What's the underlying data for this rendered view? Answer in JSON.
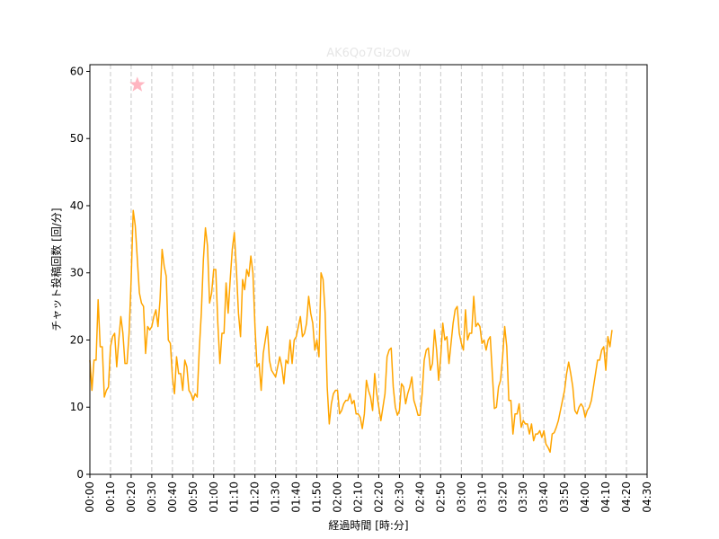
{
  "chart_data": {
    "type": "line",
    "title": "AK6Qo7GlzOw",
    "xlabel": "経過時間 [時:分]",
    "ylabel": "チャット投稿回数 [回/分]",
    "xlim": [
      0,
      270
    ],
    "ylim": [
      0,
      61
    ],
    "xticks": [
      {
        "value": 0,
        "label": "00:00"
      },
      {
        "value": 10,
        "label": "00:10"
      },
      {
        "value": 20,
        "label": "00:20"
      },
      {
        "value": 30,
        "label": "00:30"
      },
      {
        "value": 40,
        "label": "00:40"
      },
      {
        "value": 50,
        "label": "00:50"
      },
      {
        "value": 60,
        "label": "01:00"
      },
      {
        "value": 70,
        "label": "01:10"
      },
      {
        "value": 80,
        "label": "01:20"
      },
      {
        "value": 90,
        "label": "01:30"
      },
      {
        "value": 100,
        "label": "01:40"
      },
      {
        "value": 110,
        "label": "01:50"
      },
      {
        "value": 120,
        "label": "02:00"
      },
      {
        "value": 130,
        "label": "02:10"
      },
      {
        "value": 140,
        "label": "02:20"
      },
      {
        "value": 150,
        "label": "02:30"
      },
      {
        "value": 160,
        "label": "02:40"
      },
      {
        "value": 170,
        "label": "02:50"
      },
      {
        "value": 180,
        "label": "03:00"
      },
      {
        "value": 190,
        "label": "03:10"
      },
      {
        "value": 200,
        "label": "03:20"
      },
      {
        "value": 210,
        "label": "03:30"
      },
      {
        "value": 220,
        "label": "03:40"
      },
      {
        "value": 230,
        "label": "03:50"
      },
      {
        "value": 240,
        "label": "04:00"
      },
      {
        "value": 250,
        "label": "04:10"
      },
      {
        "value": 260,
        "label": "04:20"
      },
      {
        "value": 270,
        "label": "04:30"
      }
    ],
    "yticks": [
      {
        "value": 0,
        "label": "0"
      },
      {
        "value": 10,
        "label": "10"
      },
      {
        "value": 20,
        "label": "20"
      },
      {
        "value": 30,
        "label": "30"
      },
      {
        "value": 40,
        "label": "40"
      },
      {
        "value": 50,
        "label": "50"
      },
      {
        "value": 60,
        "label": "60"
      }
    ],
    "vertical_dashed_grid_x": [
      10,
      20,
      30,
      40,
      50,
      60,
      70,
      80,
      90,
      100,
      110,
      120,
      130,
      140,
      150,
      160,
      170,
      180,
      190,
      200,
      210,
      220,
      230,
      240,
      250,
      260
    ],
    "marker": {
      "shape": "star",
      "x": 23,
      "y": 58,
      "color": "#ffb6c1"
    },
    "series": [
      {
        "color": "#ffa500",
        "points": [
          [
            0,
            17
          ],
          [
            1,
            12.5
          ],
          [
            2,
            17
          ],
          [
            3,
            17
          ],
          [
            4,
            26
          ],
          [
            5,
            19
          ],
          [
            6,
            19
          ],
          [
            7,
            11.5
          ],
          [
            8,
            12.5
          ],
          [
            9,
            13
          ],
          [
            10,
            19
          ],
          [
            11,
            20.5
          ],
          [
            12,
            21
          ],
          [
            13,
            16
          ],
          [
            14,
            20
          ],
          [
            15,
            23.5
          ],
          [
            16,
            21
          ],
          [
            17,
            16.5
          ],
          [
            18,
            16.5
          ],
          [
            19,
            21
          ],
          [
            20,
            29
          ],
          [
            21,
            39.3
          ],
          [
            22,
            37
          ],
          [
            23,
            32
          ],
          [
            24,
            27
          ],
          [
            25,
            25.5
          ],
          [
            26,
            25
          ],
          [
            27,
            18
          ],
          [
            28,
            22
          ],
          [
            29,
            21.5
          ],
          [
            30,
            22
          ],
          [
            31,
            23.5
          ],
          [
            32,
            24.5
          ],
          [
            33,
            22
          ],
          [
            34,
            26
          ],
          [
            35,
            33.5
          ],
          [
            36,
            31
          ],
          [
            37,
            29.5
          ],
          [
            38,
            20
          ],
          [
            39,
            19.5
          ],
          [
            40,
            14.5
          ],
          [
            41,
            12
          ],
          [
            42,
            17.5
          ],
          [
            43,
            15
          ],
          [
            44,
            15
          ],
          [
            45,
            12.5
          ],
          [
            46,
            17
          ],
          [
            47,
            16
          ],
          [
            48,
            12.5
          ],
          [
            49,
            12
          ],
          [
            50,
            11
          ],
          [
            51,
            12
          ],
          [
            52,
            11.5
          ],
          [
            53,
            18.5
          ],
          [
            54,
            24
          ],
          [
            55,
            32
          ],
          [
            56,
            36.7
          ],
          [
            57,
            34
          ],
          [
            58,
            25.5
          ],
          [
            59,
            27
          ],
          [
            60,
            30.5
          ],
          [
            61,
            30.5
          ],
          [
            62,
            22.5
          ],
          [
            63,
            16.5
          ],
          [
            64,
            21
          ],
          [
            65,
            21
          ],
          [
            66,
            28.5
          ],
          [
            67,
            24
          ],
          [
            68,
            29
          ],
          [
            69,
            33.5
          ],
          [
            70,
            36
          ],
          [
            71,
            30.5
          ],
          [
            72,
            24
          ],
          [
            73,
            20.5
          ],
          [
            74,
            29
          ],
          [
            75,
            27.5
          ],
          [
            76,
            30.5
          ],
          [
            77,
            29.5
          ],
          [
            78,
            32.5
          ],
          [
            79,
            30
          ],
          [
            80,
            22
          ],
          [
            81,
            16
          ],
          [
            82,
            16.5
          ],
          [
            83,
            12.5
          ],
          [
            84,
            18
          ],
          [
            85,
            20
          ],
          [
            86,
            22
          ],
          [
            87,
            17
          ],
          [
            88,
            15.5
          ],
          [
            89,
            15
          ],
          [
            90,
            14.5
          ],
          [
            91,
            16
          ],
          [
            92,
            17.5
          ],
          [
            93,
            16
          ],
          [
            94,
            13.5
          ],
          [
            95,
            17
          ],
          [
            96,
            16.5
          ],
          [
            97,
            20
          ],
          [
            98,
            16.5
          ],
          [
            99,
            20
          ],
          [
            100,
            20.5
          ],
          [
            101,
            22
          ],
          [
            102,
            23.5
          ],
          [
            103,
            20.5
          ],
          [
            104,
            21
          ],
          [
            105,
            22.5
          ],
          [
            106,
            26.5
          ],
          [
            107,
            24
          ],
          [
            108,
            22.5
          ],
          [
            109,
            18.5
          ],
          [
            110,
            20
          ],
          [
            111,
            17.5
          ],
          [
            112,
            30
          ],
          [
            113,
            29
          ],
          [
            114,
            24
          ],
          [
            115,
            13
          ],
          [
            116,
            7.5
          ],
          [
            117,
            10.5
          ],
          [
            118,
            12
          ],
          [
            119,
            12.5
          ],
          [
            120,
            12.5
          ],
          [
            121,
            9
          ],
          [
            122,
            9.5
          ],
          [
            123,
            10.5
          ],
          [
            124,
            11
          ],
          [
            125,
            11
          ],
          [
            126,
            12
          ],
          [
            127,
            10.5
          ],
          [
            128,
            11
          ],
          [
            129,
            9
          ],
          [
            130,
            9
          ],
          [
            131,
            8.5
          ],
          [
            132,
            6.8
          ],
          [
            133,
            9
          ],
          [
            134,
            14
          ],
          [
            135,
            12.5
          ],
          [
            136,
            11.5
          ],
          [
            137,
            9.5
          ],
          [
            138,
            15
          ],
          [
            139,
            12
          ],
          [
            140,
            10
          ],
          [
            141,
            8
          ],
          [
            142,
            10
          ],
          [
            143,
            12
          ],
          [
            144,
            17.5
          ],
          [
            145,
            18.5
          ],
          [
            146,
            18.8
          ],
          [
            147,
            13
          ],
          [
            148,
            10
          ],
          [
            149,
            8.8
          ],
          [
            150,
            9.5
          ],
          [
            151,
            13.5
          ],
          [
            152,
            13
          ],
          [
            153,
            10.5
          ],
          [
            154,
            12
          ],
          [
            155,
            13
          ],
          [
            156,
            14.5
          ],
          [
            157,
            11
          ],
          [
            158,
            10
          ],
          [
            159,
            8.8
          ],
          [
            160,
            8.8
          ],
          [
            161,
            12
          ],
          [
            162,
            17
          ],
          [
            163,
            18.5
          ],
          [
            164,
            18.8
          ],
          [
            165,
            15.5
          ],
          [
            166,
            16.5
          ],
          [
            167,
            21.5
          ],
          [
            168,
            18.5
          ],
          [
            169,
            14
          ],
          [
            170,
            17.5
          ],
          [
            171,
            22.5
          ],
          [
            172,
            20
          ],
          [
            173,
            20.5
          ],
          [
            174,
            16.5
          ],
          [
            175,
            19.5
          ],
          [
            176,
            22.5
          ],
          [
            177,
            24.5
          ],
          [
            178,
            25
          ],
          [
            179,
            21
          ],
          [
            180,
            19.5
          ],
          [
            181,
            18.5
          ],
          [
            182,
            24.5
          ],
          [
            183,
            20
          ],
          [
            184,
            21
          ],
          [
            185,
            21
          ],
          [
            186,
            26.5
          ],
          [
            187,
            22
          ],
          [
            188,
            22.5
          ],
          [
            189,
            22
          ],
          [
            190,
            19.5
          ],
          [
            191,
            20
          ],
          [
            192,
            18.5
          ],
          [
            193,
            20
          ],
          [
            194,
            20.5
          ],
          [
            195,
            15
          ],
          [
            196,
            9.8
          ],
          [
            197,
            10
          ],
          [
            198,
            13
          ],
          [
            199,
            14
          ],
          [
            200,
            17.5
          ],
          [
            201,
            22
          ],
          [
            202,
            19
          ],
          [
            203,
            11
          ],
          [
            204,
            11
          ],
          [
            205,
            6
          ],
          [
            206,
            9
          ],
          [
            207,
            9
          ],
          [
            208,
            10.5
          ],
          [
            209,
            7
          ],
          [
            210,
            8
          ],
          [
            211,
            7.5
          ],
          [
            212,
            7.5
          ],
          [
            213,
            6
          ],
          [
            214,
            7.5
          ],
          [
            215,
            5
          ],
          [
            216,
            6
          ],
          [
            217,
            6
          ],
          [
            218,
            6.5
          ],
          [
            219,
            5.5
          ],
          [
            220,
            6.5
          ],
          [
            221,
            4.5
          ],
          [
            222,
            4
          ],
          [
            223,
            3.3
          ],
          [
            224,
            6
          ],
          [
            225,
            6.2
          ],
          [
            226,
            7
          ],
          [
            227,
            8
          ],
          [
            228,
            9.5
          ],
          [
            229,
            11
          ],
          [
            230,
            12.5
          ],
          [
            231,
            15
          ],
          [
            232,
            16.7
          ],
          [
            233,
            15
          ],
          [
            234,
            13
          ],
          [
            235,
            9.5
          ],
          [
            236,
            9
          ],
          [
            237,
            10
          ],
          [
            238,
            10.5
          ],
          [
            239,
            10
          ],
          [
            240,
            8.5
          ],
          [
            241,
            9.5
          ],
          [
            242,
            10
          ],
          [
            243,
            11
          ],
          [
            244,
            13
          ],
          [
            245,
            15
          ],
          [
            246,
            17
          ],
          [
            247,
            17
          ],
          [
            248,
            18.5
          ],
          [
            249,
            19
          ],
          [
            250,
            15.5
          ],
          [
            251,
            20.5
          ],
          [
            252,
            19
          ],
          [
            253,
            21.5
          ]
        ]
      }
    ]
  }
}
